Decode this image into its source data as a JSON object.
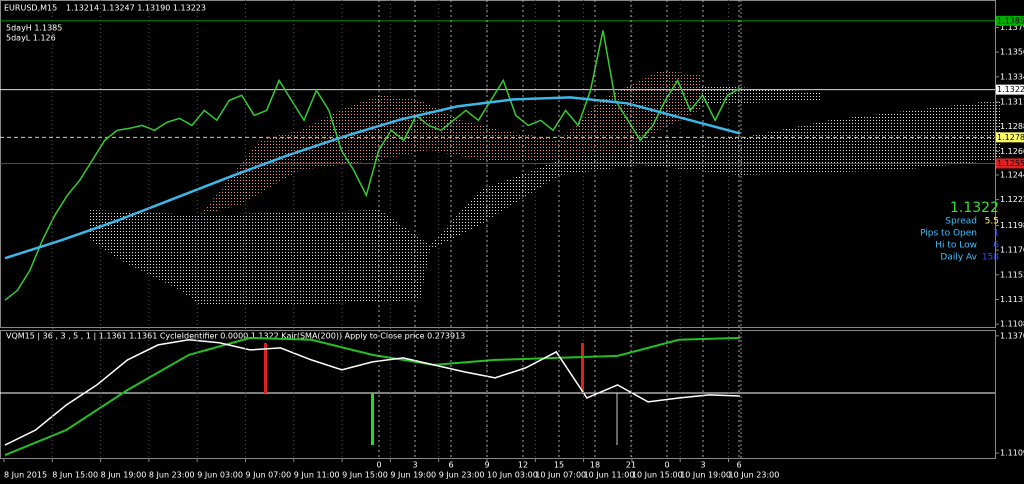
{
  "header": {
    "symbol": "EURUSD,M15",
    "ohlc": "1.13214 1.13247 1.13190 1.13223",
    "five_day_high": "5dayH 1.1385",
    "five_day_low": "5dayL 1.126"
  },
  "main": {
    "ylim": [
      1.1105,
      1.1404
    ],
    "ticks": [
      {
        "value": 1.1379,
        "label": "1.13790"
      },
      {
        "value": 1.13565,
        "label": "1.13565"
      },
      {
        "value": 1.1334,
        "label": "1.13340"
      },
      {
        "value": 1.1311,
        "label": "1.13110"
      },
      {
        "value": 1.12885,
        "label": "1.12885"
      },
      {
        "value": 1.1266,
        "label": "1.12660"
      },
      {
        "value": 1.12445,
        "label": "1.12445"
      },
      {
        "value": 1.1222,
        "label": "1.12220"
      },
      {
        "value": 1.11985,
        "label": "1.11985"
      },
      {
        "value": 1.1176,
        "label": "1.11760"
      },
      {
        "value": 1.11535,
        "label": "1.11535"
      },
      {
        "value": 1.1131,
        "label": "1.11310"
      },
      {
        "value": 1.11085,
        "label": "1.11085"
      }
    ],
    "levels": [
      {
        "value": 1.1385,
        "label": "1.13850",
        "color": "#00b000"
      },
      {
        "value": 1.13223,
        "label": "1.13223",
        "color": "#ffffff"
      },
      {
        "value": 1.12788,
        "label": "1.12788",
        "color": "#ffff66"
      },
      {
        "value": 1.1255,
        "label": "1.12550",
        "color": "#e02020"
      }
    ],
    "close": {
      "color": "#32cd32",
      "values": [
        1.11303,
        1.11394,
        1.11576,
        1.1185,
        1.12077,
        1.1226,
        1.12396,
        1.12578,
        1.12761,
        1.12852,
        1.1287,
        1.12897,
        1.12852,
        1.12925,
        1.12961,
        1.12897,
        1.13034,
        1.12943,
        1.13125,
        1.13171,
        1.12988,
        1.13034,
        1.13307,
        1.13125,
        1.12943,
        1.13216,
        1.13034,
        1.1267,
        1.12487,
        1.1226,
        1.1267,
        1.12852,
        1.12761,
        1.12988,
        1.12897,
        1.12852,
        1.12943,
        1.13034,
        1.12943,
        1.13125,
        1.13307,
        1.12988,
        1.12897,
        1.12943,
        1.12852,
        1.13034,
        1.12897,
        1.13216,
        1.13763,
        1.13125,
        1.12943,
        1.12761,
        1.12897,
        1.13125,
        1.13307,
        1.13034,
        1.13171,
        1.12943,
        1.13171,
        1.13234
      ]
    },
    "sma": {
      "color": "#3cb8e8",
      "values": [
        1.11686,
        1.1185,
        1.12032,
        1.12232,
        1.12433,
        1.12624,
        1.12797,
        1.12952,
        1.1307,
        1.13134,
        1.13152,
        1.13098,
        1.12961,
        1.12824
      ]
    }
  },
  "info": {
    "price": "1.1322",
    "rows": [
      {
        "label": "Spread",
        "value": "5.5",
        "color": "#ffff66"
      },
      {
        "label": "Pips to Open",
        "value": "1",
        "color": "#3050ff"
      },
      {
        "label": "Hi to Low",
        "value": "6",
        "color": "#3050ff"
      },
      {
        "label": "Daily Av",
        "value": "158",
        "color": "#3050ff"
      }
    ]
  },
  "indicator": {
    "label": "VQM15 | 36 , 3 , 5 , 1 | 1.1361 1.1361 CycleIdentifier 0.0000 1.1322 Kair(SMA(200)) Apply to Close price 0.273913",
    "ylim": [
      1.1098,
      1.1383
    ],
    "ticks": [
      {
        "value": 1.137,
        "label": "1.1370"
      },
      {
        "value": 1.1109,
        "label": "1.1109"
      }
    ],
    "oscillator": {
      "color": "#ffffff",
      "values": [
        1.11268,
        1.11603,
        1.12161,
        1.12607,
        1.13165,
        1.13499,
        1.13611,
        1.13544,
        1.13388,
        1.13432,
        1.13165,
        1.12941,
        1.1312,
        1.13209,
        1.13053,
        1.12897,
        1.12763,
        1.12986,
        1.13343,
        1.12317,
        1.12607,
        1.12228,
        1.12317,
        1.12384,
        1.12361
      ]
    },
    "signal": {
      "color": "#22c022",
      "values": [
        1.11045,
        1.11603,
        1.12495,
        1.13276,
        1.13655,
        1.13611,
        1.13276,
        1.13053,
        1.13165,
        1.13209,
        1.13254,
        1.13611,
        1.13655
      ]
    }
  },
  "time_axis": [
    "8 Jun 2015",
    "8 Jun 15:00",
    "8 Jun 19:00",
    "8 Jun 23:00",
    "9 Jun 03:00",
    "9 Jun 07:00",
    "9 Jun 11:00",
    "9 Jun 15:00",
    "9 Jun 19:00",
    "9 Jun 23:00",
    "10 Jun 03:00",
    "10 Jun 07:00",
    "10 Jun 11:00",
    "10 Jun 15:00",
    "10 Jun 19:00",
    "10 Jun 23:00"
  ],
  "hour_labels": [
    "0",
    "3",
    "6",
    "9",
    "12",
    "15",
    "18",
    "21",
    "0",
    "3",
    "6"
  ]
}
